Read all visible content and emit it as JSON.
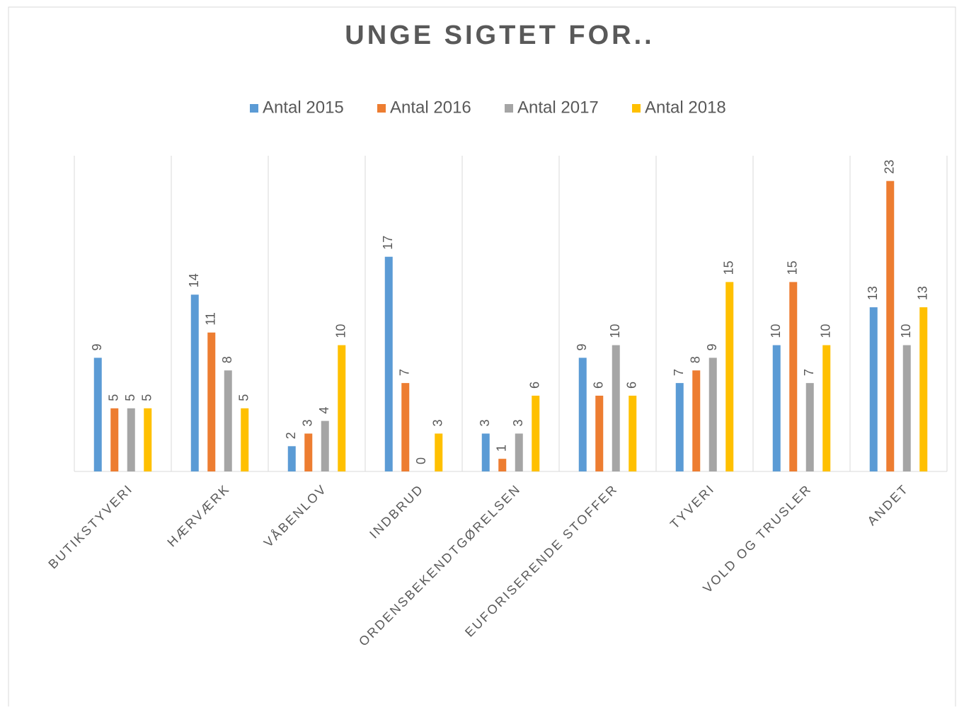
{
  "chart_data": {
    "type": "bar",
    "title": "UNGE SIGTET FOR..",
    "categories": [
      "BUTIKSTYVERI",
      "HÆRVÆRK",
      "VÅBENLOV",
      "INDBRUD",
      "ORDENSBEKENDTGØRELSEN",
      "EUFORISERENDE STOFFER",
      "TYVERI",
      "VOLD OG TRUSLER",
      "ANDET"
    ],
    "series": [
      {
        "name": "Antal 2015",
        "color": "#5b9bd5",
        "values": [
          9,
          14,
          2,
          17,
          3,
          9,
          7,
          10,
          13
        ]
      },
      {
        "name": "Antal 2016",
        "color": "#ed7d31",
        "values": [
          5,
          11,
          3,
          7,
          1,
          6,
          8,
          15,
          23
        ]
      },
      {
        "name": "Antal 2017",
        "color": "#a5a5a5",
        "values": [
          5,
          8,
          4,
          0,
          3,
          10,
          9,
          7,
          10
        ]
      },
      {
        "name": "Antal 2018",
        "color": "#ffc000",
        "values": [
          5,
          5,
          10,
          3,
          6,
          6,
          15,
          10,
          13
        ]
      }
    ],
    "ylim": [
      0,
      25
    ],
    "legend": "top"
  }
}
